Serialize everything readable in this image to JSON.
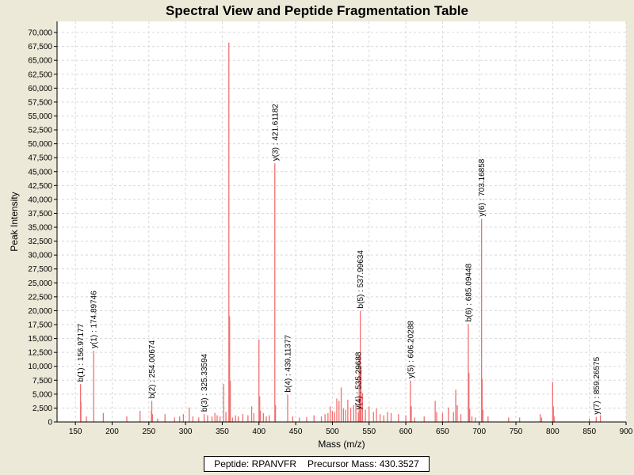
{
  "chart_data": {
    "type": "bar",
    "title": "Spectral View and Peptide Fragmentation Table",
    "xlabel": "Mass (m/z)",
    "ylabel": "Peak Intensity",
    "xlim": [
      125,
      900
    ],
    "ylim": [
      0,
      72000
    ],
    "x_ticks": [
      150,
      200,
      250,
      300,
      350,
      400,
      450,
      500,
      550,
      600,
      650,
      700,
      750,
      800,
      850,
      900
    ],
    "y_ticks": [
      0,
      2500,
      5000,
      7500,
      10000,
      12500,
      15000,
      17500,
      20000,
      22500,
      25000,
      27500,
      30000,
      32500,
      35000,
      37500,
      40000,
      42500,
      45000,
      47500,
      50000,
      52500,
      55000,
      57500,
      60000,
      62500,
      65000,
      67500,
      70000
    ],
    "x_tick_labels": [
      "150",
      "200",
      "250",
      "300",
      "350",
      "400",
      "450",
      "500",
      "550",
      "600",
      "650",
      "700",
      "750",
      "800",
      "850",
      "900"
    ],
    "y_tick_labels": [
      "0",
      "2,500",
      "5,000",
      "7,500",
      "10,000",
      "12,500",
      "15,000",
      "17,500",
      "20,000",
      "22,500",
      "25,000",
      "27,500",
      "30,000",
      "32,500",
      "35,000",
      "37,500",
      "40,000",
      "42,500",
      "45,000",
      "47,500",
      "50,000",
      "52,500",
      "55,000",
      "57,500",
      "60,000",
      "62,500",
      "65,000",
      "67,500",
      "70,000"
    ],
    "grid": true,
    "bar_color": "#f07070",
    "annotations": [
      {
        "label": "b(1) : 156.97177",
        "x": 156.97,
        "y": 6800
      },
      {
        "label": "y(1) : 174.89746",
        "x": 174.9,
        "y": 12800
      },
      {
        "label": "b(2) : 254.00674",
        "x": 254.0,
        "y": 3800
      },
      {
        "label": "b(3) : 325.33594",
        "x": 325.3,
        "y": 1400
      },
      {
        "label": "y(3) : 421.61182",
        "x": 421.6,
        "y": 46500
      },
      {
        "label": "b(4) : 439.11377",
        "x": 439.1,
        "y": 4900
      },
      {
        "label": "y(4) : 535.29688",
        "x": 535.3,
        "y": 1800
      },
      {
        "label": "b(5) : 537.99634",
        "x": 538.0,
        "y": 20000
      },
      {
        "label": "y(5) : 606.20288",
        "x": 606.2,
        "y": 7400
      },
      {
        "label": "b(6) : 685.09448",
        "x": 685.1,
        "y": 17600
      },
      {
        "label": "y(6) : 703.16858",
        "x": 703.2,
        "y": 36500
      },
      {
        "label": "y(7) : 859.26575",
        "x": 859.3,
        "y": 900
      }
    ],
    "peaks": [
      [
        156.97,
        6800
      ],
      [
        157.5,
        3600
      ],
      [
        165,
        1000
      ],
      [
        174.9,
        12800
      ],
      [
        188,
        1600
      ],
      [
        220,
        1000
      ],
      [
        238,
        2000
      ],
      [
        253.5,
        2000
      ],
      [
        254.0,
        3800
      ],
      [
        255,
        1400
      ],
      [
        262,
        600
      ],
      [
        272,
        1400
      ],
      [
        285,
        800
      ],
      [
        292,
        1000
      ],
      [
        297,
        1400
      ],
      [
        305,
        2600
      ],
      [
        310,
        1000
      ],
      [
        318,
        800
      ],
      [
        325.3,
        1400
      ],
      [
        330,
        1200
      ],
      [
        336,
        1000
      ],
      [
        340,
        1600
      ],
      [
        343,
        1200
      ],
      [
        347,
        1000
      ],
      [
        352,
        6800
      ],
      [
        355,
        1800
      ],
      [
        359,
        68200
      ],
      [
        360,
        19000
      ],
      [
        361,
        7400
      ],
      [
        364,
        800
      ],
      [
        368,
        1200
      ],
      [
        372,
        1000
      ],
      [
        378,
        1400
      ],
      [
        385,
        1200
      ],
      [
        390,
        2800
      ],
      [
        393,
        1600
      ],
      [
        400,
        14800
      ],
      [
        401,
        4600
      ],
      [
        402,
        2000
      ],
      [
        406,
        1600
      ],
      [
        410,
        1000
      ],
      [
        414,
        1200
      ],
      [
        421.6,
        46500
      ],
      [
        422.5,
        3000
      ],
      [
        439.1,
        4900
      ],
      [
        446,
        1000
      ],
      [
        455,
        800
      ],
      [
        465,
        900
      ],
      [
        475,
        1200
      ],
      [
        485,
        1000
      ],
      [
        490,
        1400
      ],
      [
        494,
        1600
      ],
      [
        497,
        2800
      ],
      [
        500,
        2000
      ],
      [
        503,
        1800
      ],
      [
        506,
        4200
      ],
      [
        509,
        3800
      ],
      [
        512,
        6200
      ],
      [
        515,
        2400
      ],
      [
        518,
        2200
      ],
      [
        521,
        4000
      ],
      [
        525,
        2600
      ],
      [
        529,
        3000
      ],
      [
        532,
        3400
      ],
      [
        535.3,
        1800
      ],
      [
        536.5,
        12000
      ],
      [
        538.0,
        20000
      ],
      [
        539,
        10000
      ],
      [
        541,
        5200
      ],
      [
        545,
        2200
      ],
      [
        550,
        2800
      ],
      [
        556,
        1800
      ],
      [
        560,
        2400
      ],
      [
        565,
        1400
      ],
      [
        570,
        1200
      ],
      [
        575,
        1800
      ],
      [
        580,
        1600
      ],
      [
        590,
        1400
      ],
      [
        600,
        1200
      ],
      [
        606.2,
        7400
      ],
      [
        607.5,
        2800
      ],
      [
        612,
        800
      ],
      [
        625,
        1000
      ],
      [
        640,
        3800
      ],
      [
        642,
        1800
      ],
      [
        650,
        1600
      ],
      [
        658,
        2600
      ],
      [
        665,
        1800
      ],
      [
        668,
        5800
      ],
      [
        670,
        3000
      ],
      [
        675,
        1400
      ],
      [
        685.1,
        17600
      ],
      [
        686,
        8800
      ],
      [
        687,
        2400
      ],
      [
        690,
        1000
      ],
      [
        695,
        800
      ],
      [
        703.2,
        36500
      ],
      [
        704,
        7800
      ],
      [
        705,
        2200
      ],
      [
        712,
        1000
      ],
      [
        740,
        800
      ],
      [
        755,
        800
      ],
      [
        783,
        1400
      ],
      [
        785,
        800
      ],
      [
        800,
        7200
      ],
      [
        801,
        2800
      ],
      [
        802,
        1000
      ],
      [
        850,
        600
      ],
      [
        859.3,
        900
      ],
      [
        865,
        1200
      ]
    ]
  },
  "legend": {
    "peptide_label": "Peptide: RPANVFR",
    "precursor_label": "Precursor Mass: 430.3527"
  }
}
